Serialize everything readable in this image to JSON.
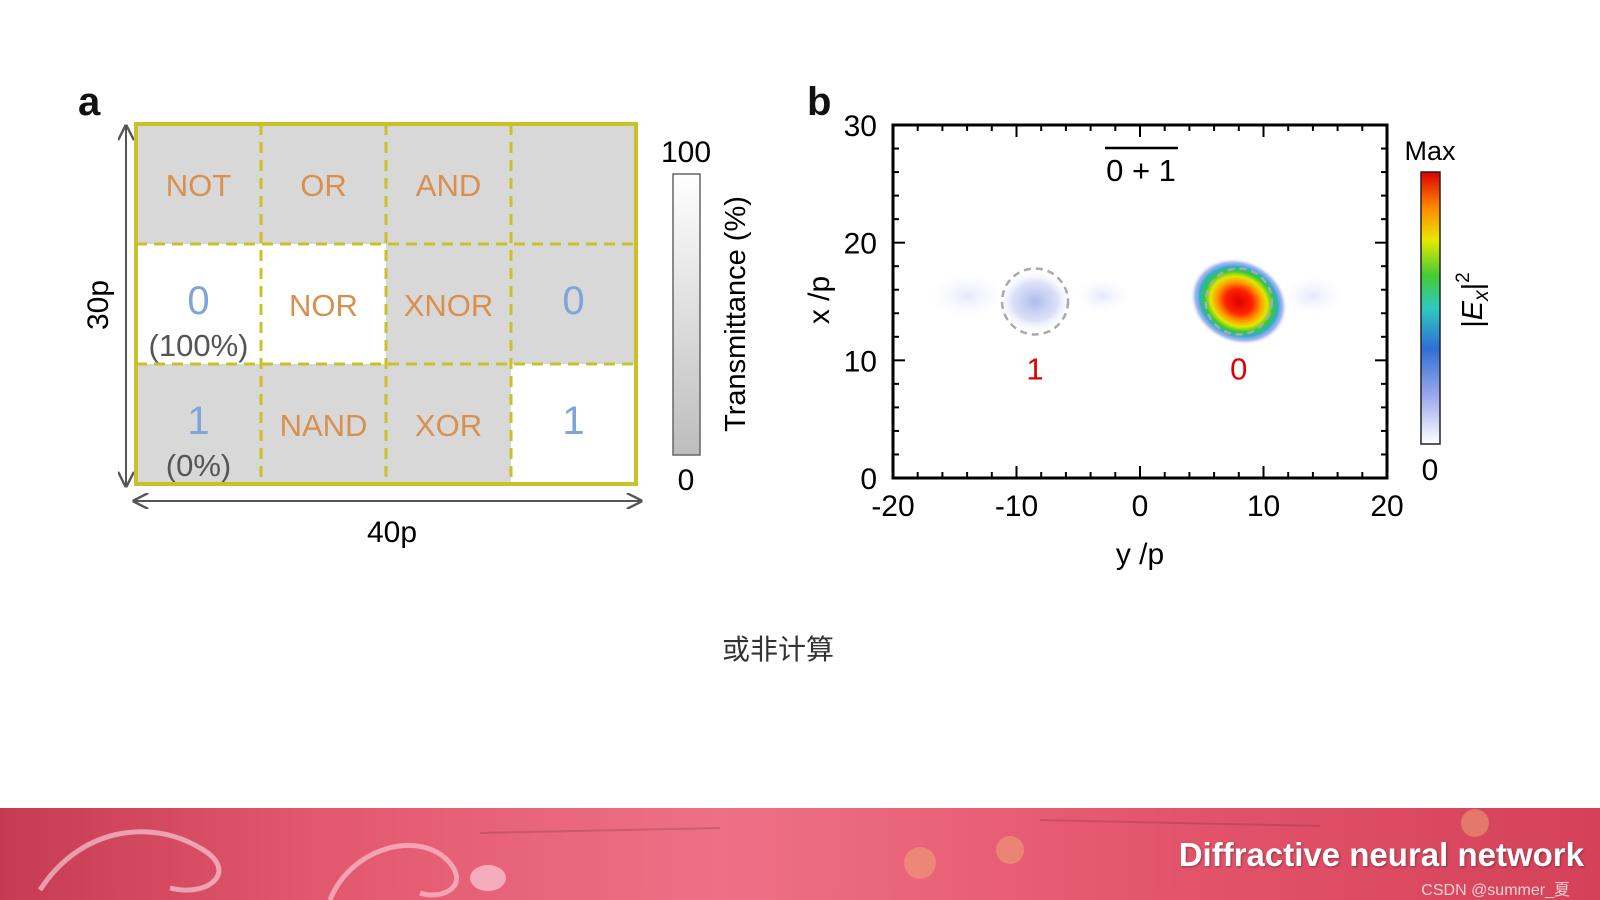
{
  "panel_a": {
    "letter": "a",
    "grid": [
      [
        {
          "label": "NOT",
          "kind": "gate",
          "fill": "gray"
        },
        {
          "label": "OR",
          "kind": "gate",
          "fill": "gray"
        },
        {
          "label": "AND",
          "kind": "gate",
          "fill": "gray"
        },
        {
          "label": "",
          "kind": "gate",
          "fill": "gray"
        }
      ],
      [
        {
          "label": "0",
          "sub": "(100%)",
          "kind": "value",
          "fill": "white"
        },
        {
          "label": "NOR",
          "kind": "gate",
          "fill": "white"
        },
        {
          "label": "XNOR",
          "kind": "gate",
          "fill": "gray"
        },
        {
          "label": "0",
          "kind": "value",
          "fill": "gray"
        }
      ],
      [
        {
          "label": "1",
          "sub": "(0%)",
          "kind": "value",
          "fill": "gray"
        },
        {
          "label": "NAND",
          "kind": "gate",
          "fill": "gray"
        },
        {
          "label": "XOR",
          "kind": "gate",
          "fill": "gray"
        },
        {
          "label": "1",
          "kind": "value",
          "fill": "white"
        }
      ]
    ],
    "height_label": "30p",
    "width_label": "40p",
    "colorbar": {
      "max": "100",
      "min": "0",
      "label": "Transmittance (%)"
    },
    "colors": {
      "gate_text": "#d9904f",
      "value_text": "#7fa4d8",
      "border": "#c8c12a",
      "gray_cell": "#d8d8d8"
    }
  },
  "panel_b": {
    "letter": "b",
    "expression": "0 + 1",
    "xlabel": "y /p",
    "ylabel": "x /p",
    "xticks": [
      "-20",
      "-10",
      "0",
      "10",
      "20"
    ],
    "yticks": [
      "0",
      "10",
      "20",
      "30"
    ],
    "x_range": [
      -20,
      20
    ],
    "y_range": [
      0,
      30
    ],
    "detectors": [
      {
        "label": "1",
        "y": -8.5,
        "x": 15,
        "intensity": "low"
      },
      {
        "label": "0",
        "y": 8,
        "x": 15,
        "intensity": "max"
      }
    ],
    "colorbar": {
      "max": "Max",
      "min": "0",
      "label": "|E_x|^2"
    },
    "colors": {
      "detector_label": "#e00000"
    }
  },
  "caption": "或非计算",
  "footer": {
    "title": "Diffractive neural network",
    "watermark": "CSDN @summer_夏"
  }
}
